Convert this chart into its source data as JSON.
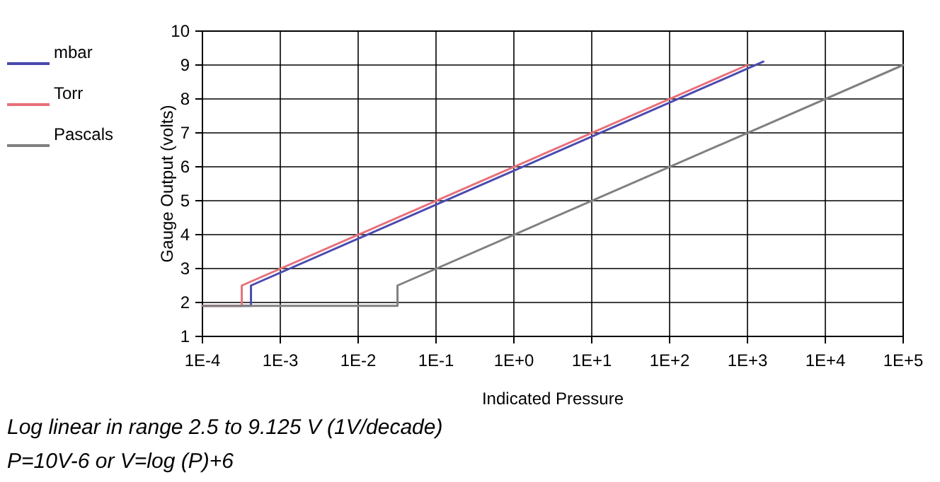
{
  "chart_data": {
    "type": "line",
    "xlabel": "Indicated Pressure",
    "ylabel": "Gauge Output (volts)",
    "log": "x",
    "grid": true,
    "legend": "left",
    "line_style": "solid",
    "marker": "none",
    "xlim": [
      0.0001,
      100000
    ],
    "ylim": [
      1,
      10
    ],
    "xticks": [
      {
        "value": 0.0001,
        "label": "1E-4"
      },
      {
        "value": 0.001,
        "label": "1E-3"
      },
      {
        "value": 0.01,
        "label": "1E-2"
      },
      {
        "value": 0.1,
        "label": "1E-1"
      },
      {
        "value": 1,
        "label": "1E+0"
      },
      {
        "value": 10,
        "label": "1E+1"
      },
      {
        "value": 100,
        "label": "1E+2"
      },
      {
        "value": 1000,
        "label": "1E+3"
      },
      {
        "value": 10000,
        "label": "1E+4"
      },
      {
        "value": 100000,
        "label": "1E+5"
      }
    ],
    "yticks": [
      1,
      2,
      3,
      4,
      5,
      6,
      7,
      8,
      9,
      10
    ],
    "series": [
      {
        "name": "mbar",
        "color": "#4a4ab0",
        "x": [
          0.0001,
          0.00042,
          0.00042,
          1600
        ],
        "values": [
          1.9,
          1.9,
          2.5,
          9.1
        ]
      },
      {
        "name": "Torr",
        "color": "#e8707a",
        "x": [
          0.0001,
          0.00032,
          0.00032,
          1000
        ],
        "values": [
          1.9,
          1.9,
          2.5,
          9
        ]
      },
      {
        "name": "Pascals",
        "color": "#808080",
        "x": [
          0.0001,
          0.032,
          0.032,
          100000
        ],
        "values": [
          1.9,
          1.9,
          2.5,
          9
        ]
      }
    ],
    "annotations": [
      "Log linear in range 2.5 to 9.125 V (1V/decade)",
      "P=10V-6 or V=log (P)+6"
    ]
  }
}
